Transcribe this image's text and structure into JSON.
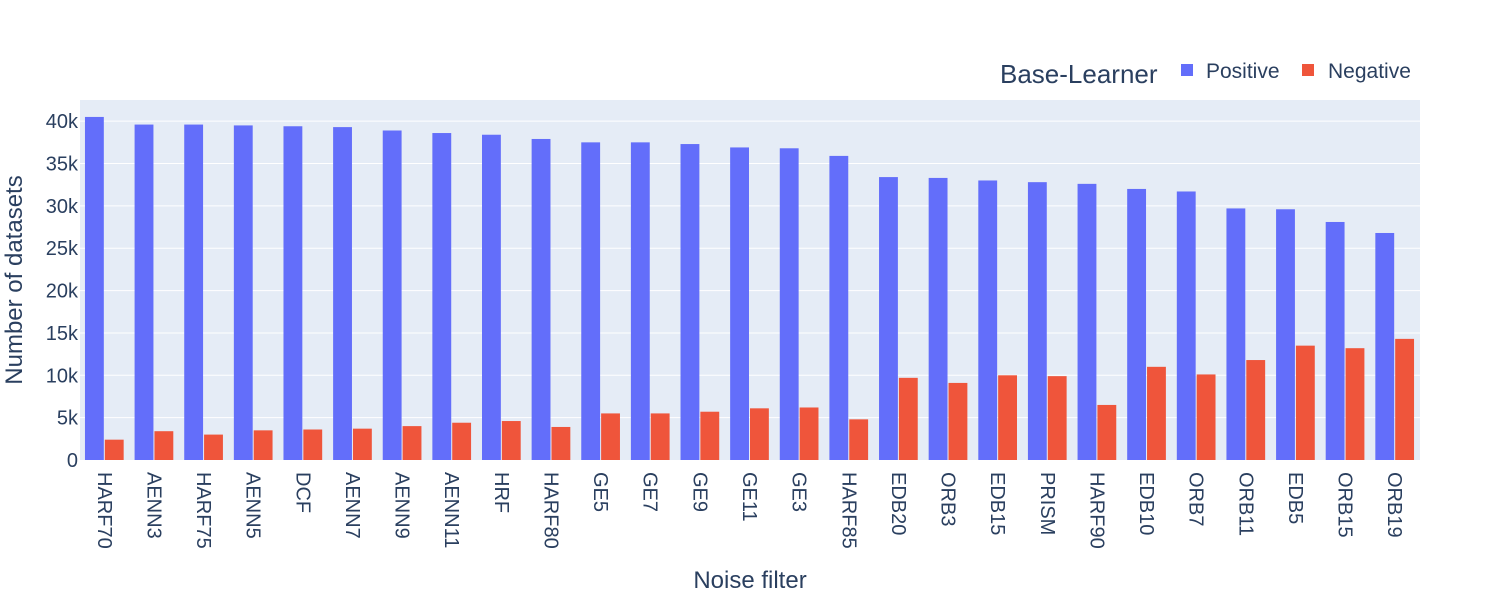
{
  "chart_data": {
    "type": "bar",
    "barmode": "group",
    "xlabel": "Noise filter",
    "ylabel": "Number of datasets",
    "ylim": [
      0,
      42500
    ],
    "yticks": [
      {
        "value": 0,
        "label": "0"
      },
      {
        "value": 5000,
        "label": "5k"
      },
      {
        "value": 10000,
        "label": "10k"
      },
      {
        "value": 15000,
        "label": "15k"
      },
      {
        "value": 20000,
        "label": "20k"
      },
      {
        "value": 25000,
        "label": "25k"
      },
      {
        "value": 30000,
        "label": "30k"
      },
      {
        "value": 35000,
        "label": "35k"
      },
      {
        "value": 40000,
        "label": "40k"
      }
    ],
    "grid": true,
    "legend": {
      "title": "Base-Learner",
      "placement": "top-right",
      "orientation": "horizontal"
    },
    "categories": [
      "HARF70",
      "AENN3",
      "HARF75",
      "AENN5",
      "DCF",
      "AENN7",
      "AENN9",
      "AENN11",
      "HRF",
      "HARF80",
      "GE5",
      "GE7",
      "GE9",
      "GE11",
      "GE3",
      "HARF85",
      "EDB20",
      "ORB3",
      "EDB15",
      "PRISM",
      "HARF90",
      "EDB10",
      "ORB7",
      "ORB11",
      "EDB5",
      "ORB15",
      "ORB19"
    ],
    "series": [
      {
        "name": "Positive",
        "color": "#636efa",
        "values": [
          40500,
          39600,
          39600,
          39500,
          39400,
          39300,
          38900,
          38600,
          38400,
          37900,
          37500,
          37500,
          37300,
          36900,
          36800,
          35900,
          33400,
          33300,
          33000,
          32800,
          32600,
          32000,
          31700,
          29700,
          29600,
          28100,
          26800
        ]
      },
      {
        "name": "Negative",
        "color": "#ef553b",
        "values": [
          2400,
          3400,
          3000,
          3500,
          3600,
          3700,
          4000,
          4400,
          4600,
          3900,
          5500,
          5500,
          5700,
          6100,
          6200,
          4800,
          9700,
          9100,
          10000,
          9900,
          6500,
          11000,
          10100,
          11800,
          13500,
          13200,
          14300
        ]
      }
    ],
    "plot_background": "#e5ecf6"
  }
}
